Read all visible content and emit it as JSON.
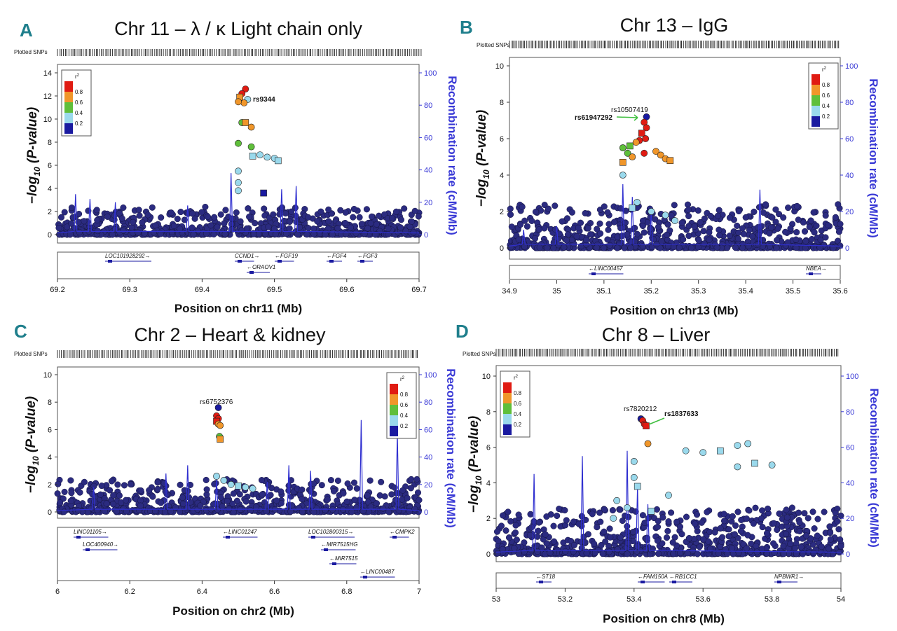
{
  "common": {
    "plotted_snps_label": "Plotted SNPs",
    "ylabel_prefix": "−",
    "ylabel_log": "log",
    "ylabel_sub": "10",
    "ylabel_pval": " (P-value)",
    "rlabel": "Recombination rate (cM/Mb)",
    "legend_title_r": "r",
    "legend_title_sup": "2",
    "legend_colors": [
      "#1a1aa0",
      "#9ad9ec",
      "#5fbf3a",
      "#f0962a",
      "#e01b12"
    ],
    "legend_labels": [
      "0.2",
      "0.4",
      "0.6",
      "0.8"
    ],
    "background_point_color": "#2b2b80",
    "recomb_line_color": "#3030d0"
  },
  "panels": [
    {
      "letter": "A",
      "title": "Chr 11 – λ / κ Light chain only",
      "xlabel": "Position on chr11 (Mb)",
      "snp_labels": [
        "rs9344"
      ],
      "genes": [
        "LOC101928292",
        "CCND1",
        "FGF19",
        "FGF4",
        "FGF3",
        "ORAOV1"
      ],
      "chart_data": {
        "type": "scatter",
        "x_ticks": [
          "69.2",
          "69.3",
          "69.4",
          "69.5",
          "69.6",
          "69.7"
        ],
        "y_ticks": [
          "0",
          "2",
          "4",
          "6",
          "8",
          "10",
          "12",
          "14"
        ],
        "r_ticks": [
          "0",
          "20",
          "40",
          "60",
          "80",
          "100"
        ],
        "xlim": [
          69.2,
          69.7
        ],
        "ylim": [
          0,
          14
        ],
        "rlim": [
          0,
          100
        ],
        "points": [
          {
            "x": 69.46,
            "y": 12.6,
            "r2": "0.8-1"
          },
          {
            "x": 69.455,
            "y": 12.2,
            "r2": "0.8-1"
          },
          {
            "x": 69.463,
            "y": 11.7,
            "r2": "0.2-0.4"
          },
          {
            "x": 69.452,
            "y": 11.9,
            "r2": "0.6-0.8"
          },
          {
            "x": 69.458,
            "y": 11.4,
            "r2": "0.6-0.8"
          },
          {
            "x": 69.45,
            "y": 11.5,
            "r2": "0.6-0.8"
          },
          {
            "x": 69.455,
            "y": 9.7,
            "r2": "0.4-0.6"
          },
          {
            "x": 69.46,
            "y": 9.7,
            "r2": "0.6-0.8"
          },
          {
            "x": 69.468,
            "y": 9.3,
            "r2": "0.6-0.8"
          },
          {
            "x": 69.45,
            "y": 7.9,
            "r2": "0.4-0.6"
          },
          {
            "x": 69.468,
            "y": 7.6,
            "r2": "0.4-0.6"
          },
          {
            "x": 69.47,
            "y": 6.8,
            "r2": "0.2-0.4"
          },
          {
            "x": 69.48,
            "y": 6.9,
            "r2": "0.2-0.4"
          },
          {
            "x": 69.49,
            "y": 6.7,
            "r2": "0.2-0.4"
          },
          {
            "x": 69.5,
            "y": 6.6,
            "r2": "0.2-0.4"
          },
          {
            "x": 69.505,
            "y": 6.4,
            "r2": "0.2-0.4"
          },
          {
            "x": 69.45,
            "y": 5.5,
            "r2": "0.2-0.4"
          },
          {
            "x": 69.45,
            "y": 4.5,
            "r2": "0.2-0.4"
          },
          {
            "x": 69.45,
            "y": 3.8,
            "r2": "0.2-0.4"
          },
          {
            "x": 69.485,
            "y": 3.6,
            "r2": "0-0.2"
          }
        ],
        "recomb_peaks": [
          {
            "x": 69.225,
            "y": 25
          },
          {
            "x": 69.245,
            "y": 22
          },
          {
            "x": 69.28,
            "y": 20
          },
          {
            "x": 69.38,
            "y": 18
          },
          {
            "x": 69.44,
            "y": 38
          },
          {
            "x": 69.51,
            "y": 28
          },
          {
            "x": 69.53,
            "y": 30
          }
        ]
      }
    },
    {
      "letter": "B",
      "title": "Chr 13 – IgG",
      "xlabel": "Position on chr13 (Mb)",
      "snp_labels": [
        "rs10507419",
        "rs61947292"
      ],
      "genes": [
        "LINC00457",
        "NBEA"
      ],
      "chart_data": {
        "type": "scatter",
        "x_ticks": [
          "34.9",
          "35",
          "35.1",
          "35.2",
          "35.3",
          "35.4",
          "35.5",
          "35.6"
        ],
        "y_ticks": [
          "0",
          "2",
          "4",
          "6",
          "8",
          "10"
        ],
        "r_ticks": [
          "0",
          "20",
          "40",
          "60",
          "80",
          "100"
        ],
        "xlim": [
          34.9,
          35.6
        ],
        "ylim": [
          0,
          10
        ],
        "rlim": [
          0,
          100
        ],
        "points": [
          {
            "x": 35.19,
            "y": 7.2,
            "r2": "0-0.2"
          },
          {
            "x": 35.185,
            "y": 6.9,
            "r2": "0.8-1"
          },
          {
            "x": 35.19,
            "y": 6.6,
            "r2": "0.8-1"
          },
          {
            "x": 35.18,
            "y": 6.3,
            "r2": "0.8-1"
          },
          {
            "x": 35.188,
            "y": 6.0,
            "r2": "0.8-1"
          },
          {
            "x": 35.175,
            "y": 5.9,
            "r2": "0.8-1"
          },
          {
            "x": 35.168,
            "y": 5.8,
            "r2": "0.6-0.8"
          },
          {
            "x": 35.155,
            "y": 5.6,
            "r2": "0.4-0.6"
          },
          {
            "x": 35.14,
            "y": 5.5,
            "r2": "0.4-0.6"
          },
          {
            "x": 35.15,
            "y": 5.2,
            "r2": "0.4-0.6"
          },
          {
            "x": 35.16,
            "y": 5.0,
            "r2": "0.6-0.8"
          },
          {
            "x": 35.14,
            "y": 4.7,
            "r2": "0.6-0.8"
          },
          {
            "x": 35.21,
            "y": 5.3,
            "r2": "0.6-0.8"
          },
          {
            "x": 35.22,
            "y": 5.1,
            "r2": "0.6-0.8"
          },
          {
            "x": 35.23,
            "y": 4.9,
            "r2": "0.6-0.8"
          },
          {
            "x": 35.24,
            "y": 4.8,
            "r2": "0.6-0.8"
          },
          {
            "x": 35.185,
            "y": 5.2,
            "r2": "0.8-1"
          },
          {
            "x": 35.14,
            "y": 4.0,
            "r2": "0.2-0.4"
          },
          {
            "x": 35.17,
            "y": 2.5,
            "r2": "0.2-0.4"
          },
          {
            "x": 35.16,
            "y": 2.2,
            "r2": "0.2-0.4"
          },
          {
            "x": 35.2,
            "y": 2.0,
            "r2": "0.2-0.4"
          },
          {
            "x": 35.23,
            "y": 1.8,
            "r2": "0.2-0.4"
          },
          {
            "x": 35.25,
            "y": 1.5,
            "r2": "0.2-0.4"
          }
        ],
        "recomb_peaks": [
          {
            "x": 34.93,
            "y": 10
          },
          {
            "x": 35.0,
            "y": 12
          },
          {
            "x": 35.14,
            "y": 35
          },
          {
            "x": 35.16,
            "y": 28
          },
          {
            "x": 35.2,
            "y": 22
          },
          {
            "x": 35.43,
            "y": 32
          }
        ]
      }
    },
    {
      "letter": "C",
      "title": "Chr 2 – Heart & kidney",
      "xlabel": "Position on chr2 (Mb)",
      "snp_labels": [
        "rs6752376"
      ],
      "genes": [
        "LINC01105",
        "LOC400940",
        "LINC01247",
        "LOC102800315",
        "CMPK2",
        "MIR7515HG",
        "MIR7515",
        "LINC00487"
      ],
      "chart_data": {
        "type": "scatter",
        "x_ticks": [
          "6",
          "6.2",
          "6.4",
          "6.6",
          "6.8",
          "7"
        ],
        "y_ticks": [
          "0",
          "2",
          "4",
          "6",
          "8",
          "10"
        ],
        "r_ticks": [
          "0",
          "20",
          "40",
          "60",
          "80",
          "100"
        ],
        "xlim": [
          6.0,
          7.0
        ],
        "ylim": [
          0,
          10
        ],
        "rlim": [
          0,
          100
        ],
        "points": [
          {
            "x": 6.445,
            "y": 7.6,
            "r2": "0-0.2"
          },
          {
            "x": 6.44,
            "y": 7.0,
            "r2": "0.8-1"
          },
          {
            "x": 6.445,
            "y": 6.8,
            "r2": "0.8-1"
          },
          {
            "x": 6.44,
            "y": 6.6,
            "r2": "0.8-1"
          },
          {
            "x": 6.445,
            "y": 6.4,
            "r2": "0.6-0.8"
          },
          {
            "x": 6.45,
            "y": 6.3,
            "r2": "0.6-0.8"
          },
          {
            "x": 6.448,
            "y": 5.5,
            "r2": "0.4-0.6"
          },
          {
            "x": 6.45,
            "y": 5.3,
            "r2": "0.6-0.8"
          },
          {
            "x": 6.44,
            "y": 2.6,
            "r2": "0.2-0.4"
          },
          {
            "x": 6.46,
            "y": 2.3,
            "r2": "0.2-0.4"
          },
          {
            "x": 6.48,
            "y": 2.0,
            "r2": "0.2-0.4"
          },
          {
            "x": 6.5,
            "y": 1.9,
            "r2": "0.2-0.4"
          },
          {
            "x": 6.52,
            "y": 1.8,
            "r2": "0.2-0.4"
          },
          {
            "x": 6.54,
            "y": 1.7,
            "r2": "0.2-0.4"
          }
        ],
        "recomb_peaks": [
          {
            "x": 6.1,
            "y": 18
          },
          {
            "x": 6.3,
            "y": 28
          },
          {
            "x": 6.36,
            "y": 34
          },
          {
            "x": 6.44,
            "y": 24
          },
          {
            "x": 6.58,
            "y": 22
          },
          {
            "x": 6.64,
            "y": 34
          },
          {
            "x": 6.7,
            "y": 30
          },
          {
            "x": 6.84,
            "y": 67
          },
          {
            "x": 6.94,
            "y": 58
          }
        ]
      }
    },
    {
      "letter": "D",
      "title": "Chr 8 – Liver",
      "xlabel": "Position on chr8 (Mb)",
      "snp_labels": [
        "rs7820212",
        "rs1837633"
      ],
      "genes": [
        "ST18",
        "FAM150A",
        "RB1CC1",
        "NPBWR1"
      ],
      "chart_data": {
        "type": "scatter",
        "x_ticks": [
          "53",
          "53.2",
          "53.4",
          "53.6",
          "53.8",
          "54"
        ],
        "y_ticks": [
          "0",
          "2",
          "4",
          "6",
          "8",
          "10"
        ],
        "r_ticks": [
          "0",
          "20",
          "40",
          "60",
          "80",
          "100"
        ],
        "xlim": [
          53.0,
          54.0
        ],
        "ylim": [
          0,
          10
        ],
        "rlim": [
          0,
          100
        ],
        "points": [
          {
            "x": 53.42,
            "y": 7.6,
            "r2": "0-0.2"
          },
          {
            "x": 53.425,
            "y": 7.5,
            "r2": "0.8-1"
          },
          {
            "x": 53.43,
            "y": 7.3,
            "r2": "0.8-1"
          },
          {
            "x": 53.435,
            "y": 7.2,
            "r2": "0.8-1"
          },
          {
            "x": 53.44,
            "y": 6.2,
            "r2": "0.6-0.8"
          },
          {
            "x": 53.55,
            "y": 5.8,
            "r2": "0.2-0.4"
          },
          {
            "x": 53.6,
            "y": 5.7,
            "r2": "0.2-0.4"
          },
          {
            "x": 53.65,
            "y": 5.8,
            "r2": "0.2-0.4"
          },
          {
            "x": 53.7,
            "y": 6.1,
            "r2": "0.2-0.4"
          },
          {
            "x": 53.73,
            "y": 6.2,
            "r2": "0.2-0.4"
          },
          {
            "x": 53.7,
            "y": 4.9,
            "r2": "0.2-0.4"
          },
          {
            "x": 53.75,
            "y": 5.1,
            "r2": "0.2-0.4"
          },
          {
            "x": 53.8,
            "y": 5.0,
            "r2": "0.2-0.4"
          },
          {
            "x": 53.4,
            "y": 5.2,
            "r2": "0.2-0.4"
          },
          {
            "x": 53.4,
            "y": 4.3,
            "r2": "0.2-0.4"
          },
          {
            "x": 53.41,
            "y": 3.8,
            "r2": "0.2-0.4"
          },
          {
            "x": 53.5,
            "y": 3.3,
            "r2": "0.2-0.4"
          },
          {
            "x": 53.35,
            "y": 3.0,
            "r2": "0.2-0.4"
          },
          {
            "x": 53.38,
            "y": 2.6,
            "r2": "0.2-0.4"
          },
          {
            "x": 53.45,
            "y": 2.4,
            "r2": "0.2-0.4"
          },
          {
            "x": 53.34,
            "y": 2.0,
            "r2": "0.2-0.4"
          }
        ],
        "recomb_peaks": [
          {
            "x": 53.11,
            "y": 45
          },
          {
            "x": 53.25,
            "y": 55
          },
          {
            "x": 53.38,
            "y": 58
          },
          {
            "x": 53.41,
            "y": 38
          },
          {
            "x": 53.44,
            "y": 28
          }
        ]
      }
    }
  ]
}
